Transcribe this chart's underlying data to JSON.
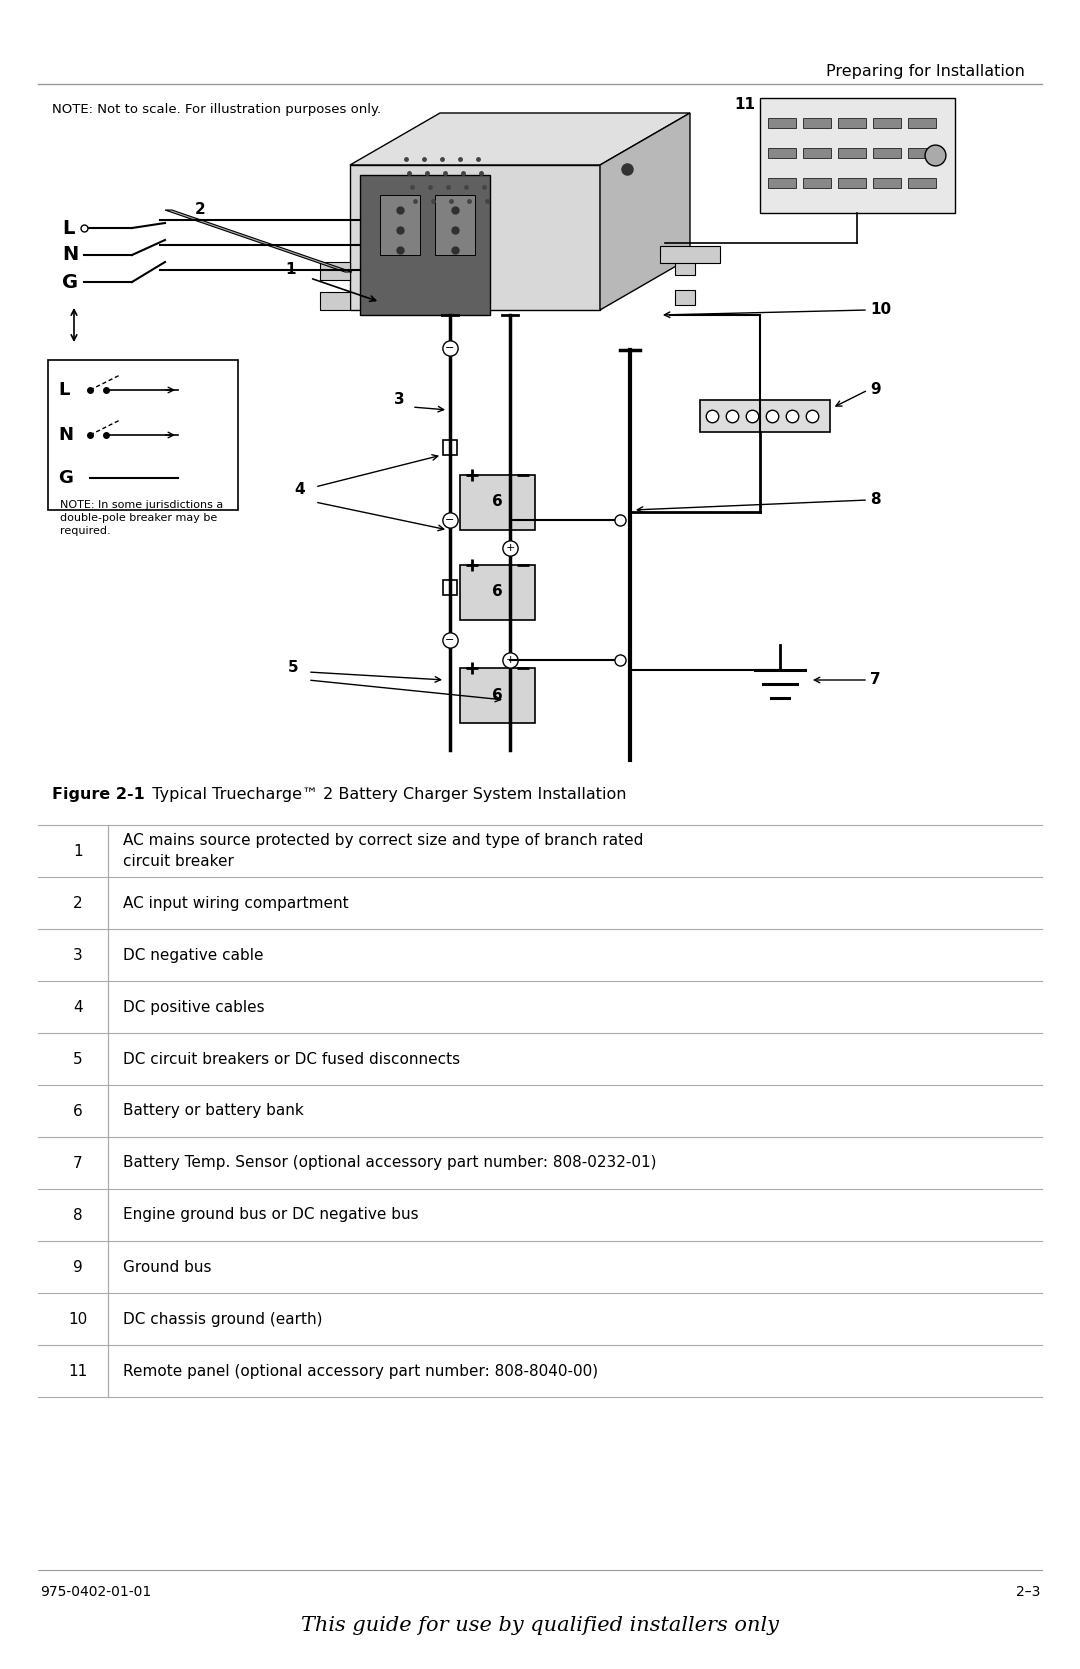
{
  "page_header": "Preparing for Installation",
  "note_text": "NOTE: Not to scale. For illustration purposes only.",
  "figure_caption_bold": "Figure 2-1",
  "figure_caption_rest": "  Typical Truecharge™ 2 Battery Charger System Installation",
  "table_rows": [
    {
      "num": "1",
      "desc": "AC mains source protected by correct size and type of branch rated\ncircuit breaker"
    },
    {
      "num": "2",
      "desc": "AC input wiring compartment"
    },
    {
      "num": "3",
      "desc": "DC negative cable"
    },
    {
      "num": "4",
      "desc": "DC positive cables"
    },
    {
      "num": "5",
      "desc": "DC circuit breakers or DC fused disconnects"
    },
    {
      "num": "6",
      "desc": "Battery or battery bank"
    },
    {
      "num": "7",
      "desc": "Battery Temp. Sensor (optional accessory part number: 808-0232-01)"
    },
    {
      "num": "8",
      "desc": "Engine ground bus or DC negative bus"
    },
    {
      "num": "9",
      "desc": "Ground bus"
    },
    {
      "num": "10",
      "desc": "DC chassis ground (earth)"
    },
    {
      "num": "11",
      "desc": "Remote panel (optional accessory part number: 808-8040-00)"
    }
  ],
  "footer_left": "975-0402-01-01",
  "footer_right": "2–3",
  "footer_center": "This guide for use by qualified installers only",
  "bg_color": "#ffffff",
  "text_color": "#000000",
  "table_line_color": "#aaaaaa",
  "header_line_color": "#999999"
}
